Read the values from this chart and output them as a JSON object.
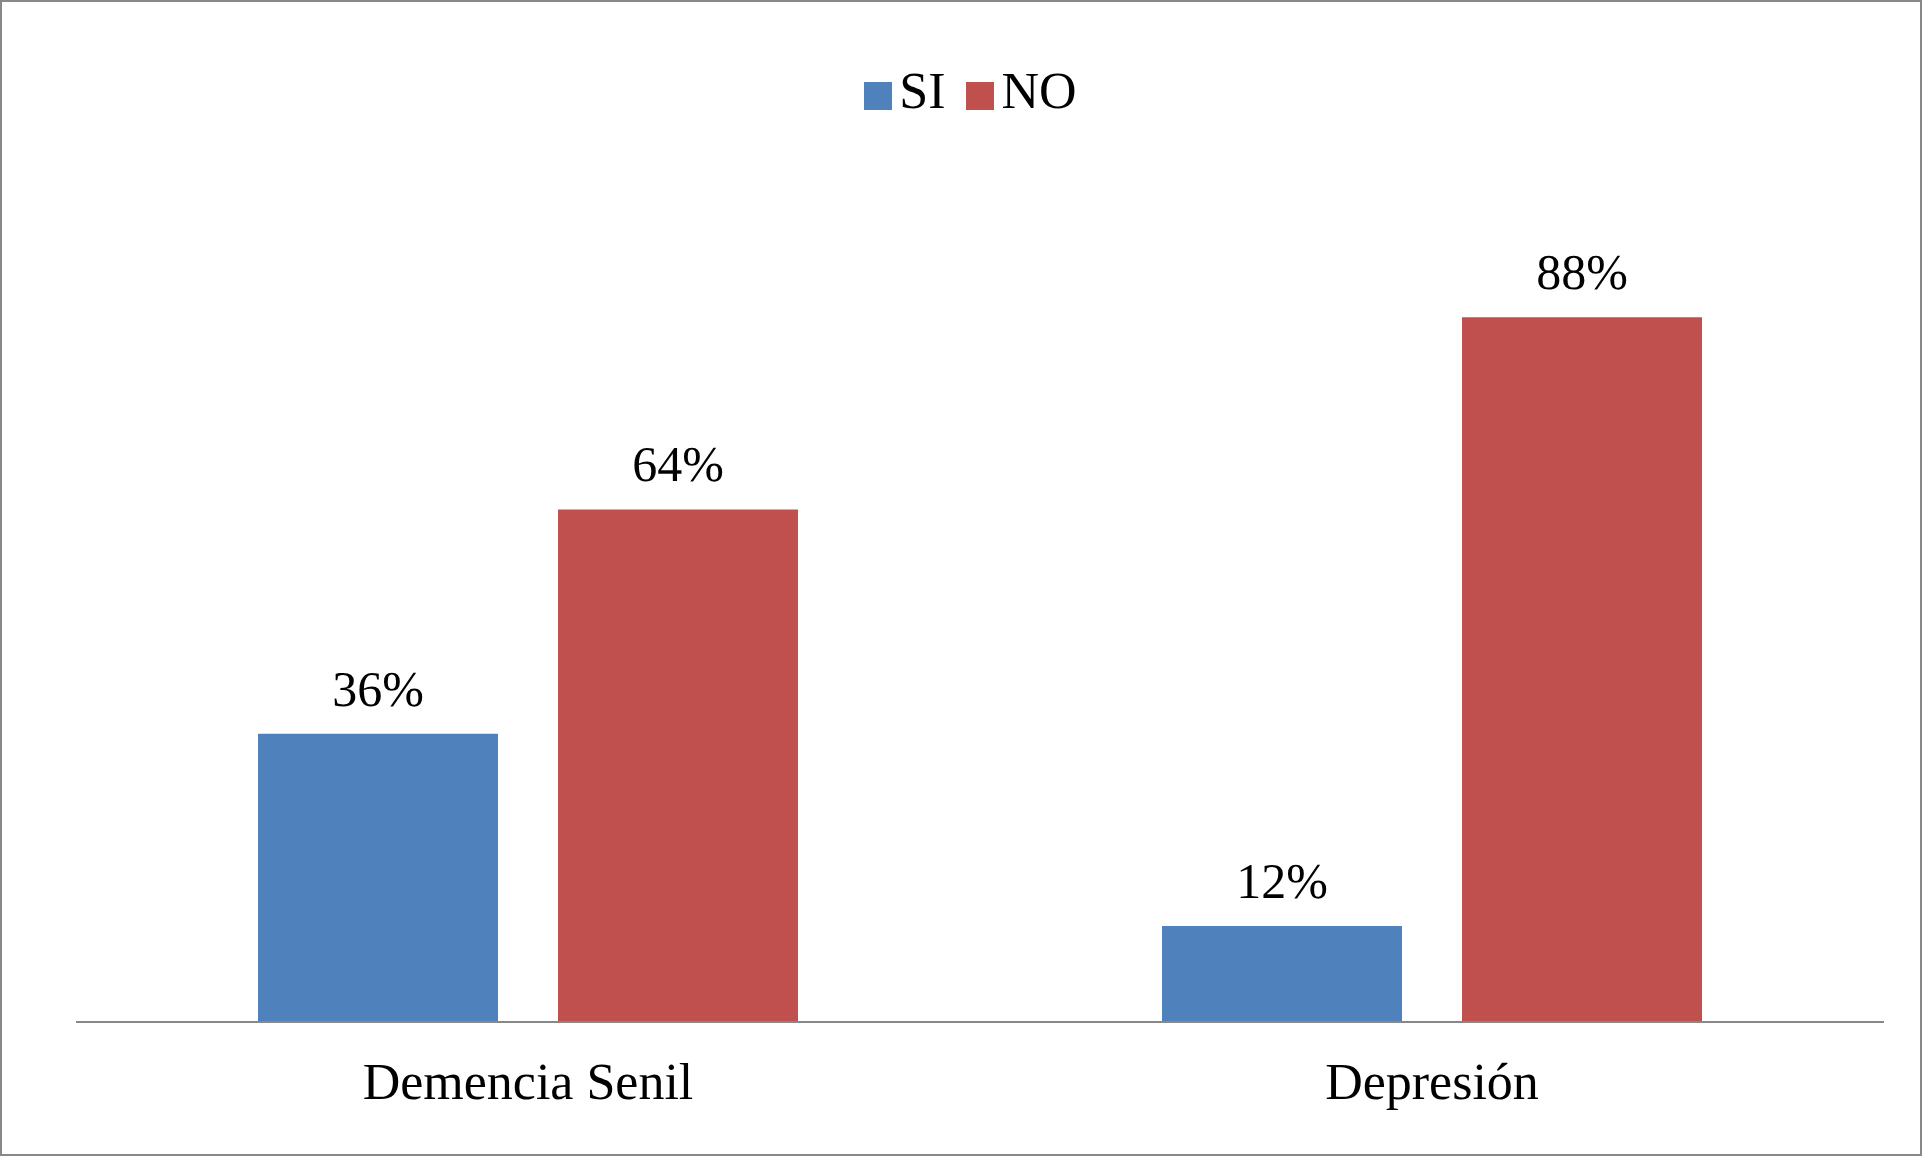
{
  "chart_data": {
    "type": "bar",
    "categories": [
      "Demencia Senil",
      "Depresión"
    ],
    "series": [
      {
        "name": "SI",
        "color": "#4f81bd",
        "values": [
          36,
          12
        ],
        "value_labels": [
          "36%",
          "12%"
        ]
      },
      {
        "name": "NO",
        "color": "#c0504d",
        "values": [
          64,
          88
        ],
        "value_labels": [
          "64%",
          "88%"
        ]
      }
    ],
    "legend": "top",
    "grid": false
  }
}
